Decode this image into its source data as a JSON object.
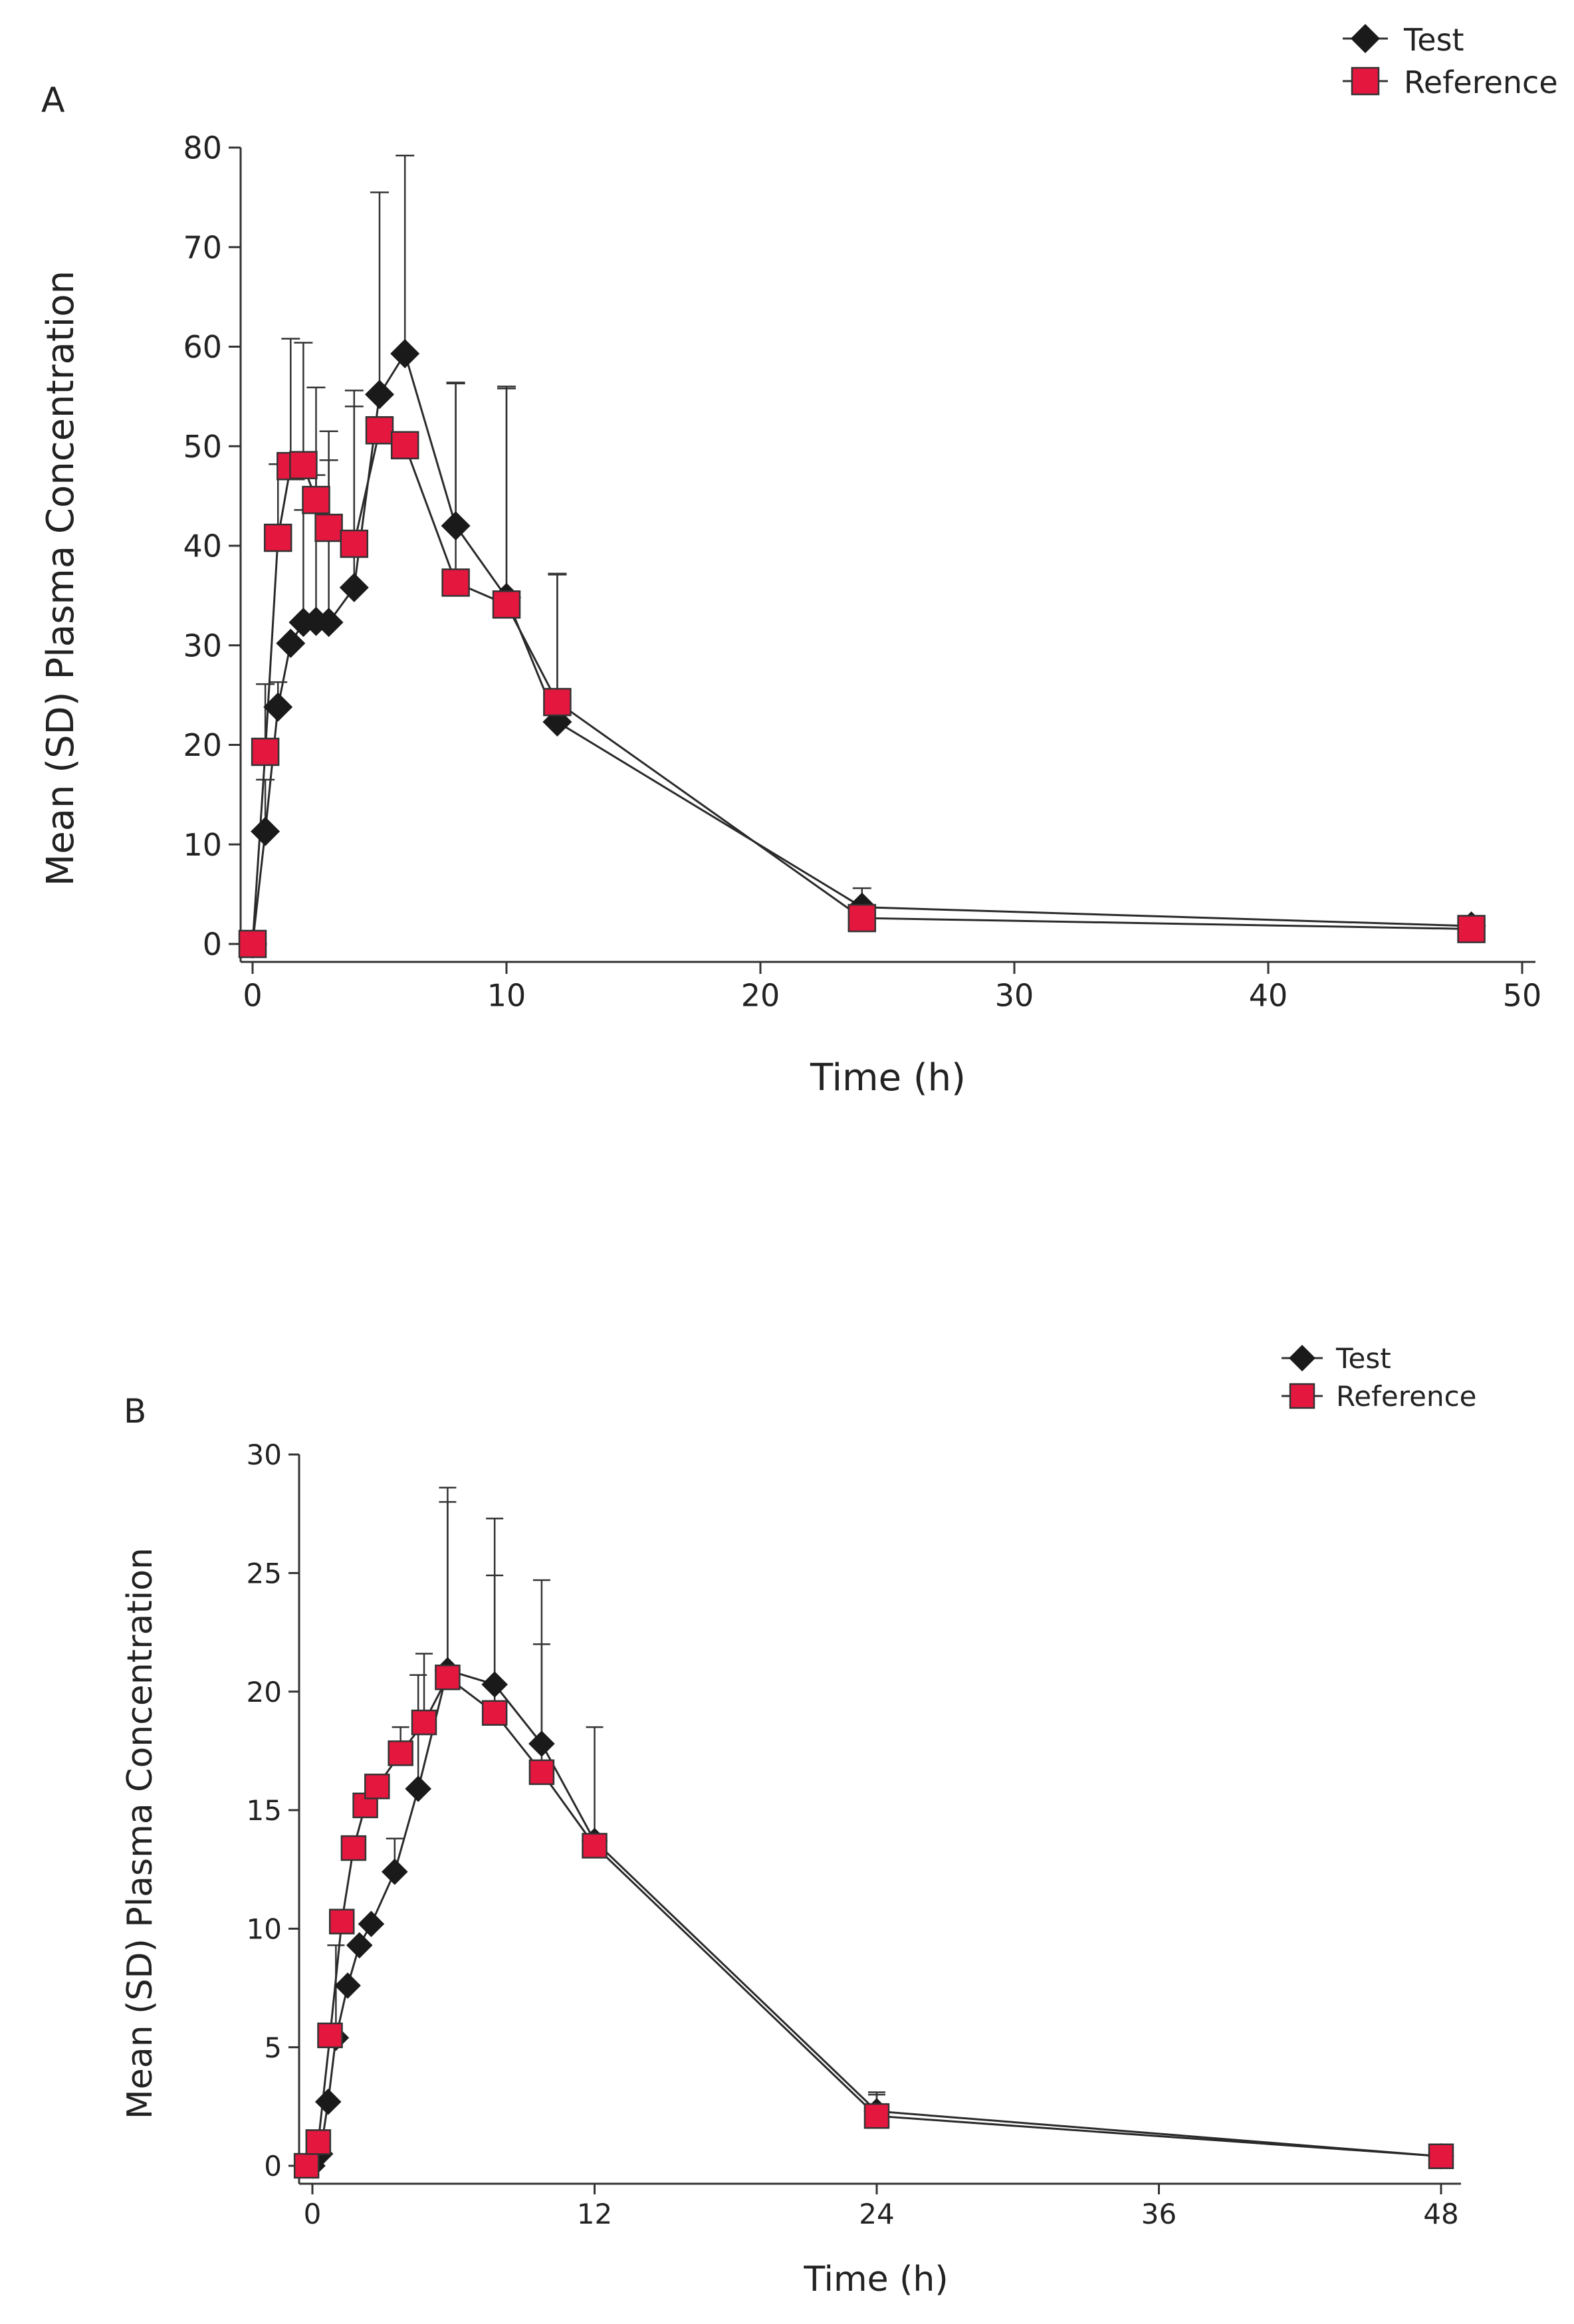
{
  "chart_data": [
    {
      "panel": "A",
      "type": "line",
      "xlabel": "Time (h)",
      "ylabel": "Mean (SD) Plasma Concentration",
      "xlim": [
        0,
        50
      ],
      "ylim": [
        0,
        80
      ],
      "xticks": [
        0,
        10,
        20,
        30,
        40,
        50
      ],
      "yticks": [
        0,
        10,
        20,
        30,
        40,
        50,
        60,
        70,
        80
      ],
      "legend_position": "top-right",
      "series": [
        {
          "name": "Test",
          "marker": "diamond",
          "color": "#1a1a1a",
          "x": [
            0,
            0.5,
            1,
            1.5,
            2,
            2.5,
            3,
            4,
            5,
            6,
            8,
            10,
            12,
            24,
            48
          ],
          "y": [
            0,
            11.3,
            23.8,
            30.2,
            32.3,
            32.4,
            32.3,
            35.8,
            55.2,
            59.3,
            42.0,
            34.8,
            22.3,
            3.7,
            1.8
          ],
          "sd": [
            0,
            5.2,
            2.5,
            0,
            11.3,
            14.7,
            16.3,
            19.8,
            20.3,
            19.9,
            14.4,
            21.2,
            14.9,
            1.9,
            0
          ]
        },
        {
          "name": "Reference",
          "marker": "square",
          "color": "#e4173f",
          "x": [
            0,
            0.5,
            1,
            1.5,
            2,
            2.5,
            3,
            4,
            5,
            6,
            8,
            10,
            12,
            24,
            48
          ],
          "y": [
            0,
            19.3,
            40.8,
            48.0,
            48.1,
            44.6,
            41.8,
            40.2,
            51.6,
            50.1,
            36.3,
            34.1,
            24.3,
            2.6,
            1.5
          ],
          "sd": [
            0,
            6.8,
            7.4,
            12.8,
            12.3,
            11.3,
            9.7,
            13.8,
            0,
            0,
            20.0,
            21.7,
            12.8,
            1.2,
            0
          ]
        }
      ]
    },
    {
      "panel": "B",
      "type": "line",
      "xlabel": "Time (h)",
      "ylabel": "Mean (SD) Plasma Concentration",
      "xlim": [
        0,
        48
      ],
      "ylim": [
        0,
        30
      ],
      "xticks": [
        0,
        12,
        24,
        36,
        48
      ],
      "yticks": [
        0,
        5,
        10,
        15,
        20,
        25,
        30
      ],
      "legend_position": "top-right",
      "series": [
        {
          "name": "Test",
          "marker": "diamond",
          "color": "#1a1a1a",
          "x": [
            0,
            0.33,
            0.67,
            1,
            1.5,
            2,
            2.5,
            3.5,
            4.5,
            5.75,
            7.75,
            9.75,
            12,
            24,
            48
          ],
          "y": [
            0,
            0.5,
            2.7,
            5.4,
            7.6,
            9.3,
            10.2,
            12.4,
            15.9,
            20.9,
            20.3,
            17.8,
            13.7,
            2.3,
            0.4
          ],
          "sd": [
            0,
            0,
            0,
            3.9,
            0,
            0,
            0,
            1.4,
            4.8,
            7.7,
            7.0,
            6.9,
            4.8,
            0.8,
            0
          ]
        },
        {
          "name": "Reference",
          "marker": "square",
          "color": "#e4173f",
          "x": [
            -0.25,
            0.25,
            0.75,
            1.25,
            1.75,
            2.25,
            2.75,
            3.75,
            4.75,
            5.75,
            7.75,
            9.75,
            12,
            24,
            48
          ],
          "y": [
            0,
            1.0,
            5.5,
            10.3,
            13.4,
            15.2,
            16.0,
            17.4,
            18.7,
            20.6,
            19.1,
            16.6,
            13.5,
            2.1,
            0.4
          ],
          "sd": [
            0,
            0,
            0,
            0,
            0,
            0,
            0,
            1.1,
            2.9,
            7.4,
            5.8,
            5.4,
            0,
            0.9,
            0
          ]
        }
      ]
    }
  ]
}
